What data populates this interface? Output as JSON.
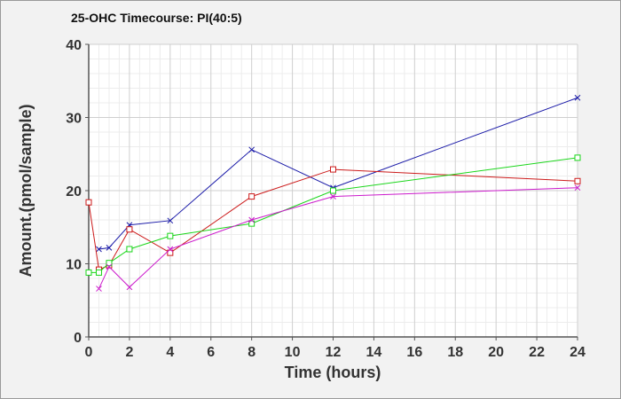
{
  "chart_data": {
    "type": "line",
    "title": "25-OHC Timecourse: PI(40:5)",
    "xlabel": "Time (hours)",
    "ylabel": "Amount.(pmol/sample)",
    "xlim": [
      0,
      24
    ],
    "ylim": [
      0,
      40
    ],
    "xticks": [
      0,
      2,
      4,
      6,
      8,
      10,
      12,
      14,
      16,
      18,
      20,
      22,
      24
    ],
    "yticks": [
      0,
      10,
      20,
      30,
      40
    ],
    "grid": true,
    "series": [
      {
        "color": "#1a1aa8",
        "marker": "x",
        "x": [
          0.5,
          1,
          2,
          4,
          8,
          12,
          24
        ],
        "y": [
          12.0,
          12.2,
          15.3,
          15.9,
          25.6,
          20.4,
          32.7
        ]
      },
      {
        "color": "#cc1a1a",
        "marker": "square",
        "x": [
          0,
          0.5,
          1,
          2,
          4,
          8,
          12,
          24
        ],
        "y": [
          18.4,
          9.2,
          9.8,
          14.7,
          11.5,
          19.2,
          22.9,
          21.3
        ]
      },
      {
        "color": "#1ad61a",
        "marker": "square",
        "x": [
          0,
          0.5,
          1,
          2,
          4,
          8,
          12,
          24
        ],
        "y": [
          8.8,
          8.8,
          10.1,
          12.0,
          13.8,
          15.5,
          20.0,
          24.5
        ]
      },
      {
        "color": "#cc1acc",
        "marker": "x",
        "x": [
          0.5,
          1,
          2,
          4,
          8,
          12,
          24
        ],
        "y": [
          6.6,
          9.6,
          6.8,
          12.0,
          16.0,
          19.2,
          20.4
        ]
      }
    ]
  }
}
